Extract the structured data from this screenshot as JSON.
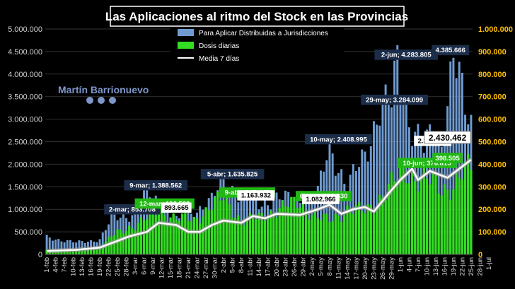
{
  "chart_data": {
    "type": "bar",
    "title": "Las Aplicaciones al ritmo del Stock en las Provincias",
    "watermark": "Martín Barrionuevo",
    "legend_position": "top-center",
    "y_left": {
      "min": 0,
      "max": 5000000,
      "ticks": [
        "0",
        "500.000",
        "1.000.000",
        "1.500.000",
        "2.000.000",
        "2.500.000",
        "3.000.000",
        "3.500.000",
        "4.000.000",
        "4.500.000",
        "5.000.000"
      ]
    },
    "y_right": {
      "min": 0,
      "max": 1000000,
      "ticks": [
        "0",
        "100.000",
        "200.000",
        "300.000",
        "400.000",
        "500.000",
        "600.000",
        "700.000",
        "800.000",
        "900.000",
        "1.000.000"
      ]
    },
    "colors": {
      "stock": "#6f9bd1",
      "daily": "#33dd22",
      "avg": "#ffffff",
      "left_axis": "#cfcfcf",
      "right_axis": "#ffc000",
      "grid": "#333333"
    },
    "series": [
      {
        "name": "Para Aplicar Distribuidas a Jurisdicciones",
        "axis": "left",
        "kind": "bar",
        "anchors": [
          [
            0,
            380000
          ],
          [
            10,
            260000
          ],
          [
            18,
            330000
          ],
          [
            22,
            780000
          ],
          [
            26,
            860000
          ],
          [
            30,
            900000
          ],
          [
            34,
            1388562
          ],
          [
            40,
            1000000
          ],
          [
            45,
            700000
          ],
          [
            50,
            950000
          ],
          [
            56,
            1200000
          ],
          [
            60,
            1635825
          ],
          [
            66,
            1300000
          ],
          [
            72,
            1100000
          ],
          [
            78,
            1250000
          ],
          [
            86,
            1200000
          ],
          [
            92,
            1350000
          ],
          [
            96,
            2408995
          ],
          [
            102,
            1500000
          ],
          [
            108,
            2200000
          ],
          [
            113,
            3284099
          ],
          [
            117,
            3300000
          ],
          [
            119,
            4283805
          ],
          [
            123,
            3000000
          ],
          [
            128,
            2300000
          ],
          [
            131,
            2700000
          ],
          [
            134,
            2500000
          ],
          [
            138,
            4385666
          ],
          [
            142,
            3200000
          ],
          [
            144,
            2900000
          ]
        ]
      },
      {
        "name": "Dosis diarias",
        "axis": "right",
        "kind": "bar",
        "anchors": [
          [
            0,
            22000
          ],
          [
            10,
            15000
          ],
          [
            18,
            30000
          ],
          [
            22,
            80000
          ],
          [
            28,
            120000
          ],
          [
            34,
            160000
          ],
          [
            38,
            196533
          ],
          [
            44,
            160000
          ],
          [
            50,
            150000
          ],
          [
            56,
            220000
          ],
          [
            60,
            245445
          ],
          [
            66,
            150000
          ],
          [
            72,
            160000
          ],
          [
            78,
            200000
          ],
          [
            86,
            229630
          ],
          [
            92,
            160000
          ],
          [
            96,
            150000
          ],
          [
            102,
            200000
          ],
          [
            108,
            190000
          ],
          [
            113,
            250000
          ],
          [
            119,
            330000
          ],
          [
            122,
            376815
          ],
          [
            125,
            340000
          ],
          [
            130,
            320000
          ],
          [
            134,
            300000
          ],
          [
            138,
            300000
          ],
          [
            142,
            360000
          ],
          [
            144,
            398505
          ]
        ]
      },
      {
        "name": "Media 7 días",
        "axis": "right",
        "kind": "line",
        "anchors": [
          [
            0,
            15000
          ],
          [
            10,
            20000
          ],
          [
            18,
            30000
          ],
          [
            22,
            50000
          ],
          [
            28,
            80000
          ],
          [
            34,
            100000
          ],
          [
            38,
            140000
          ],
          [
            44,
            130000
          ],
          [
            48,
            100000
          ],
          [
            52,
            100000
          ],
          [
            56,
            130000
          ],
          [
            60,
            150000
          ],
          [
            66,
            140000
          ],
          [
            70,
            170000
          ],
          [
            74,
            160000
          ],
          [
            78,
            180000
          ],
          [
            86,
            175000
          ],
          [
            92,
            200000
          ],
          [
            96,
            220000
          ],
          [
            100,
            180000
          ],
          [
            104,
            200000
          ],
          [
            108,
            210000
          ],
          [
            111,
            190000
          ],
          [
            116,
            270000
          ],
          [
            120,
            330000
          ],
          [
            124,
            380000
          ],
          [
            126,
            330000
          ],
          [
            130,
            370000
          ],
          [
            134,
            350000
          ],
          [
            136,
            340000
          ],
          [
            140,
            380000
          ],
          [
            144,
            420000
          ]
        ]
      }
    ],
    "x_start": "2021-02-01",
    "x_tick_labels": [
      "1-feb",
      "4-feb",
      "7-feb",
      "10-feb",
      "13-feb",
      "16-feb",
      "19-feb",
      "22-feb",
      "25-feb",
      "28-feb",
      "3-mar",
      "6-mar",
      "9-mar",
      "12-mar",
      "15-mar",
      "18-mar",
      "21-mar",
      "24-mar",
      "27-mar",
      "30-mar",
      "2-abr",
      "5-abr",
      "8-abr",
      "11-abr",
      "14-abr",
      "17-abr",
      "20-abr",
      "23-abr",
      "26-abr",
      "29-abr",
      "2-may",
      "5-may",
      "8-may",
      "11-may",
      "14-may",
      "17-may",
      "20-may",
      "23-may",
      "26-may",
      "29-may",
      "1-jun",
      "4-jun",
      "7-jun",
      "10-jun",
      "13-jun",
      "16-jun",
      "19-jun",
      "22-jun",
      "25-jun",
      "28-jun",
      "1-jul"
    ],
    "annotations": [
      {
        "text": "9-mar; 1.388.562",
        "x": 37,
        "y": 1388562,
        "axis": "left",
        "style": "dark"
      },
      {
        "text": "2-mar; 853.708",
        "x": 29,
        "y": 853708,
        "axis": "left",
        "style": "dark"
      },
      {
        "text": "12-mar; 196.533",
        "x": 40,
        "y": 196533,
        "axis": "right",
        "style": "green"
      },
      {
        "text": "893.665",
        "x": 44,
        "y": 893665,
        "axis": "left",
        "style": "white"
      },
      {
        "text": "5-abr; 1.635.825",
        "x": 63,
        "y": 1635825,
        "axis": "left",
        "style": "dark"
      },
      {
        "text": "9-abr; 245.445",
        "x": 68,
        "y": 245445,
        "axis": "right",
        "style": "green"
      },
      {
        "text": "1.163.932",
        "x": 71,
        "y": 1163932,
        "axis": "left",
        "style": "white"
      },
      {
        "text": "10-may; 2.408.995",
        "x": 99,
        "y": 2408995,
        "axis": "left",
        "style": "dark"
      },
      {
        "text": "6-may; 229.630",
        "x": 94,
        "y": 229630,
        "axis": "right",
        "style": "green"
      },
      {
        "text": "1.082.966",
        "x": 93,
        "y": 1082966,
        "axis": "left",
        "style": "white"
      },
      {
        "text": "29-may; 3.284.099",
        "x": 118,
        "y": 3284099,
        "axis": "left",
        "style": "dark"
      },
      {
        "text": "2-jun; 4.283.805",
        "x": 122,
        "y": 4283805,
        "axis": "left",
        "style": "dark"
      },
      {
        "text": "2.372.220",
        "x": 131,
        "y": 2372220,
        "axis": "left",
        "style": "white"
      },
      {
        "text": "10-jun; 376.815",
        "x": 129,
        "y": 376815,
        "axis": "right",
        "style": "green"
      },
      {
        "text": "4.385.666",
        "x": 137,
        "y": 4385666,
        "axis": "left",
        "style": "dark"
      },
      {
        "text": "2.430.462",
        "x": 136,
        "y": 2430462,
        "axis": "left",
        "style": "white-big"
      },
      {
        "text": "398.505",
        "x": 136,
        "y": 398505,
        "axis": "right",
        "style": "green"
      }
    ]
  }
}
